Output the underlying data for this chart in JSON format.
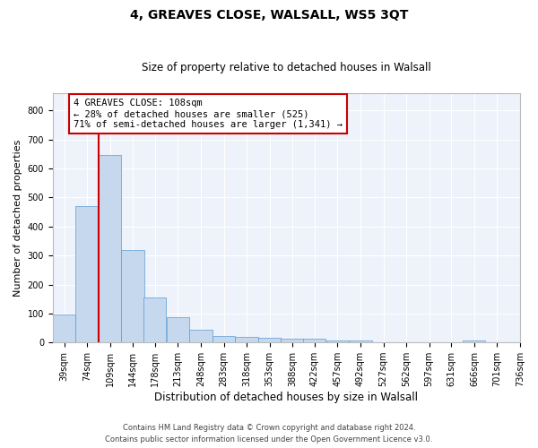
{
  "title": "4, GREAVES CLOSE, WALSALL, WS5 3QT",
  "subtitle": "Size of property relative to detached houses in Walsall",
  "xlabel": "Distribution of detached houses by size in Walsall",
  "ylabel": "Number of detached properties",
  "footer_line1": "Contains HM Land Registry data © Crown copyright and database right 2024.",
  "footer_line2": "Contains public sector information licensed under the Open Government Licence v3.0.",
  "annotation_line1": "4 GREAVES CLOSE: 108sqm",
  "annotation_line2": "← 28% of detached houses are smaller (525)",
  "annotation_line3": "71% of semi-detached houses are larger (1,341) →",
  "bar_color": "#c5d8ee",
  "bar_edge_color": "#5b9bd5",
  "red_line_color": "#cc0000",
  "annotation_box_edgecolor": "#cc0000",
  "background_color": "#eef2fa",
  "grid_color": "#ffffff",
  "bins": [
    39,
    74,
    109,
    144,
    178,
    213,
    248,
    283,
    318,
    353,
    388,
    422,
    457,
    492,
    527,
    562,
    597,
    631,
    666,
    701,
    736
  ],
  "bin_labels": [
    "39sqm",
    "74sqm",
    "109sqm",
    "144sqm",
    "178sqm",
    "213sqm",
    "248sqm",
    "283sqm",
    "318sqm",
    "353sqm",
    "388sqm",
    "422sqm",
    "457sqm",
    "492sqm",
    "527sqm",
    "562sqm",
    "597sqm",
    "631sqm",
    "666sqm",
    "701sqm",
    "736sqm"
  ],
  "counts": [
    95,
    470,
    648,
    320,
    155,
    88,
    43,
    22,
    18,
    17,
    14,
    13,
    8,
    6,
    0,
    0,
    0,
    0,
    8,
    0,
    0
  ],
  "red_line_x": 109,
  "ylim": [
    0,
    860
  ],
  "yticks": [
    0,
    100,
    200,
    300,
    400,
    500,
    600,
    700,
    800
  ],
  "title_fontsize": 10,
  "subtitle_fontsize": 8.5,
  "ylabel_fontsize": 8,
  "xlabel_fontsize": 8.5,
  "tick_fontsize": 7,
  "annotation_fontsize": 7.5,
  "footer_fontsize": 6
}
